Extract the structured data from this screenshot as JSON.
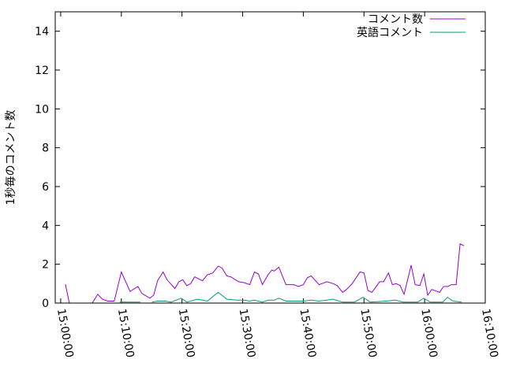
{
  "chart_data": {
    "type": "line",
    "title": "",
    "xlabel": "",
    "ylabel": "1秒毎のコメント数",
    "xlim": [
      "14:59:06",
      "16:10:00"
    ],
    "ylim": [
      0,
      15
    ],
    "x_ticks": [
      "15:00:00",
      "15:10:00",
      "15:20:00",
      "15:30:00",
      "15:40:00",
      "15:50:00",
      "16:00:00",
      "16:10:00"
    ],
    "y_ticks": [
      "0",
      "2",
      "4",
      "6",
      "8",
      "10",
      "12",
      "14"
    ],
    "grid": false,
    "legend_position": "top-right",
    "series": [
      {
        "name": "コメント数",
        "color": "#9400d3",
        "points": [
          [
            "15:00:47",
            0.97
          ],
          [
            "15:01:26",
            0
          ],
          [
            "15:03:38",
            0
          ],
          null,
          [
            "15:05:12",
            0
          ],
          [
            "15:06:06",
            0.45
          ],
          [
            "15:06:53",
            0.2
          ],
          [
            "15:07:47",
            0.1
          ],
          [
            "15:08:50",
            0.1
          ],
          [
            "15:10:00",
            1.6
          ],
          [
            "15:11:26",
            0.6
          ],
          [
            "15:12:44",
            0.85
          ],
          [
            "15:13:23",
            0.5
          ],
          [
            "15:14:41",
            0.25
          ],
          [
            "15:15:19",
            0.4
          ],
          [
            "15:15:58",
            1.15
          ],
          [
            "15:16:53",
            1.6
          ],
          [
            "15:17:32",
            1.2
          ],
          [
            "15:18:50",
            0.75
          ],
          [
            "15:19:29",
            1.1
          ],
          [
            "15:20:08",
            1.2
          ],
          [
            "15:20:47",
            0.9
          ],
          [
            "15:21:26",
            1.0
          ],
          [
            "15:22:05",
            1.35
          ],
          [
            "15:23:23",
            1.15
          ],
          [
            "15:24:10",
            1.45
          ],
          [
            "15:25:04",
            1.55
          ],
          [
            "15:25:58",
            1.9
          ],
          [
            "15:26:37",
            1.8
          ],
          [
            "15:27:24",
            1.4
          ],
          [
            "15:28:03",
            1.35
          ],
          [
            "15:29:21",
            1.1
          ],
          [
            "15:30:16",
            1.05
          ],
          [
            "15:31:10",
            0.95
          ],
          [
            "15:31:57",
            1.6
          ],
          [
            "15:32:36",
            1.5
          ],
          [
            "15:33:15",
            0.95
          ],
          [
            "15:34:10",
            1.45
          ],
          [
            "15:34:49",
            1.7
          ],
          [
            "15:35:12",
            1.65
          ],
          [
            "15:35:58",
            1.85
          ],
          [
            "15:37:08",
            0.95
          ],
          [
            "15:38:26",
            0.95
          ],
          [
            "15:39:13",
            0.85
          ],
          [
            "15:40:00",
            0.95
          ],
          [
            "15:40:39",
            1.3
          ],
          [
            "15:41:18",
            1.4
          ],
          [
            "15:42:36",
            0.95
          ],
          [
            "15:43:54",
            1.1
          ],
          [
            "15:44:56",
            1.0
          ],
          [
            "15:45:35",
            0.9
          ],
          [
            "15:46:29",
            0.55
          ],
          [
            "15:47:08",
            0.7
          ],
          [
            "15:48:03",
            1.0
          ],
          [
            "15:49:21",
            1.6
          ],
          [
            "15:50:00",
            1.55
          ],
          [
            "15:50:39",
            0.65
          ],
          [
            "15:51:18",
            0.55
          ],
          [
            "15:52:36",
            1.1
          ],
          [
            "15:53:15",
            1.1
          ],
          [
            "15:54:02",
            1.55
          ],
          [
            "15:54:41",
            0.95
          ],
          [
            "15:55:19",
            1.0
          ],
          [
            "15:55:58",
            0.9
          ],
          [
            "15:56:37",
            0.45
          ],
          [
            "15:57:47",
            1.95
          ],
          [
            "15:58:26",
            0.95
          ],
          [
            "15:59:13",
            0.9
          ],
          [
            "15:59:52",
            1.5
          ],
          [
            "16:00:31",
            0.4
          ],
          [
            "16:01:10",
            0.7
          ],
          [
            "16:02:28",
            0.55
          ],
          [
            "16:03:07",
            0.85
          ],
          [
            "16:03:46",
            0.85
          ],
          [
            "16:04:25",
            0.95
          ],
          [
            "16:05:12",
            0.95
          ],
          [
            "16:05:51",
            3.05
          ],
          [
            "16:06:29",
            2.95
          ]
        ]
      },
      {
        "name": "英語コメント",
        "color": "#009e73",
        "points": [
          [
            "15:09:44",
            0.05
          ],
          [
            "15:13:07",
            0.05
          ],
          null,
          [
            "15:15:04",
            0.05
          ],
          [
            "15:15:58",
            0.1
          ],
          [
            "15:17:16",
            0.1
          ],
          [
            "15:18:11",
            0.05
          ],
          [
            "15:19:52",
            0.25
          ],
          [
            "15:20:47",
            0.05
          ],
          [
            "15:22:28",
            0.2
          ],
          [
            "15:23:23",
            0.15
          ],
          [
            "15:24:10",
            0.1
          ],
          [
            "15:25:58",
            0.55
          ],
          [
            "15:27:24",
            0.2
          ],
          [
            "15:28:58",
            0.15
          ],
          [
            "15:30:16",
            0.15
          ],
          [
            "15:31:10",
            0.1
          ],
          [
            "15:31:57",
            0.15
          ],
          [
            "15:33:15",
            0.05
          ],
          [
            "15:34:10",
            0.15
          ],
          [
            "15:35:12",
            0.15
          ],
          [
            "15:35:58",
            0.25
          ],
          [
            "15:37:08",
            0.1
          ],
          [
            "15:40:00",
            0.1
          ],
          [
            "15:41:18",
            0.15
          ],
          [
            "15:42:36",
            0.1
          ],
          [
            "15:44:56",
            0.2
          ],
          [
            "15:46:29",
            0.05
          ],
          [
            "15:48:26",
            0.05
          ],
          [
            "15:49:52",
            0.3
          ],
          [
            "15:51:02",
            0.05
          ],
          [
            "15:53:38",
            0.1
          ],
          [
            "15:55:12",
            0.15
          ],
          [
            "15:56:29",
            0.05
          ],
          [
            "15:58:50",
            0.05
          ],
          [
            "15:59:52",
            0.25
          ],
          [
            "16:00:55",
            0.05
          ],
          [
            "16:02:59",
            0.05
          ],
          [
            "16:03:46",
            0.3
          ],
          [
            "16:04:41",
            0.1
          ],
          [
            "16:06:06",
            0.05
          ]
        ]
      }
    ]
  }
}
